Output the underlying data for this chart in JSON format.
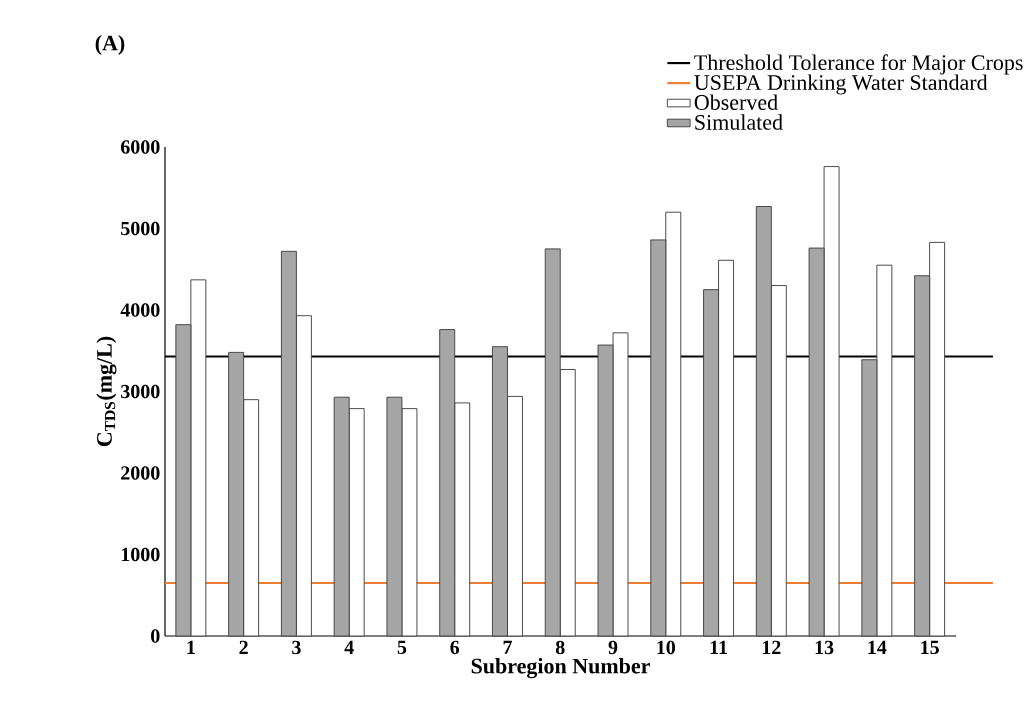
{
  "chart_data": {
    "type": "bar",
    "annotations": [
      "(A)"
    ],
    "xlabel": "Subregion Number",
    "ylabel": "C$_{TDS}$(mg/L)",
    "categories": [
      "1",
      "2",
      "3",
      "4",
      "5",
      "6",
      "7",
      "8",
      "9",
      "10",
      "11",
      "12",
      "13",
      "14",
      "15"
    ],
    "series": [
      {
        "name": "Simulated",
        "color": "#a6a6a6",
        "values": [
          3820,
          3480,
          4720,
          2930,
          2930,
          3760,
          3550,
          4750,
          3570,
          4860,
          4250,
          5270,
          4760,
          3390,
          4420
        ]
      },
      {
        "name": "Observed",
        "color": "#ffffff",
        "values": [
          4370,
          2900,
          3930,
          2790,
          2790,
          2860,
          2940,
          3270,
          3720,
          5200,
          4610,
          4300,
          5760,
          4550,
          4830
        ]
      }
    ],
    "ylim": [
      0,
      6000
    ],
    "yticks": [
      0,
      1000,
      2000,
      3000,
      4000,
      5000,
      6000
    ],
    "ref_lines": [
      {
        "axis": "y",
        "value": 3430,
        "label": "Threshold Tolerance for Major Crops",
        "color": "#000000"
      },
      {
        "axis": "y",
        "value": 650,
        "label": "USEPA Drinking Water Standard",
        "color": "#ed7d31"
      }
    ],
    "legend": "top right"
  }
}
